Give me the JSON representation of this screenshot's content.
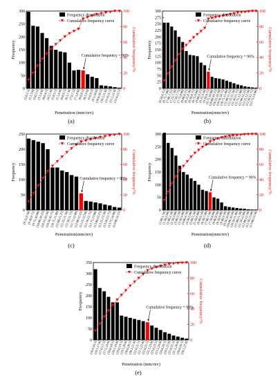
{
  "legend": {
    "bar_label": "Frequency distribution",
    "line_label": "Cumulative frequency curve"
  },
  "colors": {
    "bar": "#000000",
    "highlight_bar": "#ff0000",
    "curve": "#ff0000",
    "right_axis": "#ff0000"
  },
  "chart_data": [
    {
      "type": "bar",
      "panel_label": "(a)",
      "xlabel": "Penetration (mm/rev)",
      "ylabel": "Frequency",
      "y2label": "Cumulative frequency/%",
      "ylim": [
        0,
        300
      ],
      "yticks": [
        0,
        50,
        100,
        150,
        200,
        250,
        300
      ],
      "y2lim": [
        0,
        100
      ],
      "y2ticks": [
        0,
        20,
        40,
        60,
        80,
        100
      ],
      "annotation": "Cumulative frequency = 90%",
      "highlight_index": 12,
      "categories": [
        "(2.0,2.5]",
        "(2.5,3.0]",
        "(3.0,3.5]",
        "(3.5,4.0]",
        "(4.0,4.5]",
        "(4.5,5.0]",
        "(5.0,5.5]",
        "(5.5,6.0]",
        "(6.0,6.5]",
        "(6.5,7.0]",
        "(7.0,7.5]",
        "(7.5,8.0]",
        "(8.0,8.5]",
        "(8.5,9.0]",
        "(9.0,9.5]",
        "(9.5,10.0]",
        "(10.0,10.5]",
        "(10.5,11.0]",
        "(11.0,11.5]",
        "(11.5,12.0]",
        "(12.0,12.5]"
      ],
      "values": [
        297,
        243,
        240,
        215,
        195,
        165,
        150,
        143,
        140,
        100,
        70,
        72,
        70,
        55,
        45,
        40,
        12,
        10,
        8,
        5,
        3
      ],
      "cumulative": [
        11,
        20,
        29,
        38,
        45,
        51,
        57,
        62,
        67,
        71,
        74,
        77,
        90,
        92,
        94,
        96,
        97,
        98,
        99,
        100,
        100
      ]
    },
    {
      "type": "bar",
      "panel_label": "(b)",
      "xlabel": "Penetration(mm/rev)",
      "ylabel": "Frequency",
      "y2label": "Cumulative frequency/%",
      "ylim": [
        0,
        300
      ],
      "yticks": [
        0,
        25,
        50,
        75,
        100,
        125,
        150,
        175,
        200,
        225,
        250,
        275,
        300
      ],
      "y2lim": [
        0,
        100
      ],
      "y2ticks": [
        0,
        20,
        40,
        60,
        80,
        100
      ],
      "annotation": "Cumulative frequency = 90%",
      "highlight_index": 12,
      "categories": [
        "(6.50,6.75]",
        "(6.75,7.00]",
        "(7.00,7.25]",
        "(7.25,7.50]",
        "(7.50,7.75]",
        "(7.75,8.00]",
        "(8.00,8.25]",
        "(8.25,8.50]",
        "(8.50,8.75]",
        "(8.75,9.00]",
        "(9.00,9.25]",
        "(9.25,9.50]",
        "(9.50,9.75]",
        "(9.75,10.00]",
        "(10.00,10.25]",
        "(10.25,10.50]",
        "(10.50,10.75]",
        "(10.75,11.00]",
        "(11.00,11.25]",
        "(11.25,11.50]",
        "(11.50,11.75]",
        "(11.75,12.00]",
        "(12.00,12.25]",
        "(12.25,12.50]",
        "(12.50,12.75]",
        "(12.75,13.00]"
      ],
      "values": [
        255,
        255,
        240,
        225,
        200,
        180,
        145,
        130,
        128,
        125,
        100,
        90,
        65,
        45,
        40,
        38,
        35,
        30,
        25,
        20,
        15,
        12,
        8,
        6,
        4,
        3
      ],
      "cumulative": [
        10,
        19,
        28,
        36,
        44,
        51,
        56,
        61,
        66,
        70,
        74,
        78,
        90,
        91,
        92,
        93,
        94,
        95,
        96,
        97,
        98,
        98.5,
        99,
        99.5,
        100,
        100
      ]
    },
    {
      "type": "bar",
      "panel_label": "(c)",
      "xlabel": "Penetration(mm/rev)",
      "ylabel": "Frequency",
      "y2label": "Cumulative frequency/%",
      "ylim": [
        0,
        250
      ],
      "yticks": [
        0,
        50,
        100,
        150,
        200,
        250
      ],
      "y2lim": [
        0,
        100
      ],
      "y2ticks": [
        0,
        20,
        40,
        60,
        80,
        100
      ],
      "annotation": "Cumulative frequency = 90%",
      "highlight_index": 11,
      "categories": [
        "(9.25,9.50]",
        "(9.50,9.75]",
        "(9.75,10.00]",
        "(10.00,10.25]",
        "(10.25,10.50]",
        "(10.50,10.75]",
        "(10.75,11.00]",
        "(11.00,11.25]",
        "(11.25,11.50]",
        "(11.50,11.75]",
        "(11.75,12.00]",
        "(12.00,12.25]",
        "(12.25,12.50]",
        "(12.50,12.75]",
        "(12.75,13.00]",
        "(13.00,13.25]",
        "(13.25,13.50]",
        "(13.50,13.75]",
        "(13.75,14.00]",
        "(14.00,14.25]"
      ],
      "values": [
        235,
        230,
        225,
        220,
        200,
        140,
        140,
        130,
        125,
        115,
        110,
        55,
        30,
        28,
        25,
        22,
        18,
        15,
        10,
        8
      ],
      "cumulative": [
        11,
        22,
        32,
        42,
        51,
        58,
        64,
        70,
        76,
        81,
        86,
        90,
        91.5,
        93,
        94.5,
        96,
        97,
        98,
        99,
        100
      ]
    },
    {
      "type": "bar",
      "panel_label": "(d)",
      "xlabel": "Penetration(mm/rev)",
      "ylabel": "Frequency",
      "y2label": "Cumulative frequency/%",
      "ylim": [
        0,
        300
      ],
      "yticks": [
        0,
        50,
        100,
        150,
        200,
        250,
        300
      ],
      "y2lim": [
        0,
        100
      ],
      "y2ticks": [
        0,
        20,
        40,
        60,
        80,
        100
      ],
      "annotation": "Cumulative frequency = 90%",
      "highlight_index": 12,
      "categories": [
        "(1.00,1.50]",
        "(1.50,2.00]",
        "(2.00,2.50]",
        "(2.50,3.00]",
        "(3.00,3.50]",
        "(3.50,4.00]",
        "(4.00,4.50]",
        "(4.50,5.00]",
        "(5.00,5.50]",
        "(5.50,6.00]",
        "(6.00,6.50]",
        "(6.50,7.00]",
        "(7.00,7.50]",
        "(7.50,8.00]",
        "(8.00,8.50]",
        "(8.50,9.00]",
        "(9.00,9.50]",
        "(9.50,10.00]",
        "(10.00,10.50]",
        "(10.50,11.00]",
        "(11.00,11.50]",
        "(11.50,12.00]",
        "(12.00,12.50]",
        "(12.50,13.00]",
        "(13.00,13.50]"
      ],
      "values": [
        305,
        265,
        245,
        215,
        175,
        150,
        140,
        125,
        115,
        100,
        80,
        75,
        70,
        50,
        45,
        30,
        15,
        12,
        10,
        8,
        6,
        5,
        3,
        2,
        2
      ],
      "cumulative": [
        13,
        24,
        35,
        44,
        52,
        58,
        64,
        70,
        75,
        79,
        83,
        86,
        90,
        92,
        94,
        95.5,
        96.5,
        97.5,
        98,
        98.5,
        99,
        99.5,
        99.8,
        100,
        100
      ]
    },
    {
      "type": "bar",
      "panel_label": "(e)",
      "xlabel": "Penetration (mm/rev)",
      "ylabel": "Frequency",
      "y2label": "Cumulative frequency/%",
      "ylim": [
        0,
        350
      ],
      "yticks": [
        0,
        50,
        100,
        150,
        200,
        250,
        300,
        350
      ],
      "y2lim": [
        0,
        100
      ],
      "y2ticks": [
        0,
        20,
        40,
        60,
        80,
        100
      ],
      "annotation": "Cumulative frequency = 90%",
      "highlight_index": 12,
      "categories": [
        "(16.0,16.5]",
        "(16.5,17.0]",
        "(17.0,17.5]",
        "(17.5,18.0]",
        "(18.0,18.5]",
        "(18.5,19.0]",
        "(19.0,19.5]",
        "(19.5,20.0]",
        "(20.0,20.5]",
        "(20.5,21.0]",
        "(21.0,21.5]",
        "(21.5,22.0]",
        "(22.0,22.5]",
        "(22.5,23.0]",
        "(23.0,23.5]",
        "(23.5,24.0]",
        "(24.0,24.5]",
        "(24.5,25.0]",
        "(25.0,25.5]",
        "(25.5,26.0]",
        "(26.0,26.5]",
        "(26.5,27.0]"
      ],
      "values": [
        320,
        235,
        220,
        195,
        170,
        170,
        110,
        105,
        100,
        95,
        90,
        85,
        80,
        65,
        55,
        45,
        35,
        28,
        20,
        15,
        10,
        6
      ],
      "cumulative": [
        12,
        21,
        30,
        38,
        45,
        52,
        58,
        64,
        70,
        75,
        80,
        85,
        90,
        92,
        94,
        95.5,
        97,
        98,
        98.8,
        99.3,
        99.7,
        100
      ]
    }
  ]
}
